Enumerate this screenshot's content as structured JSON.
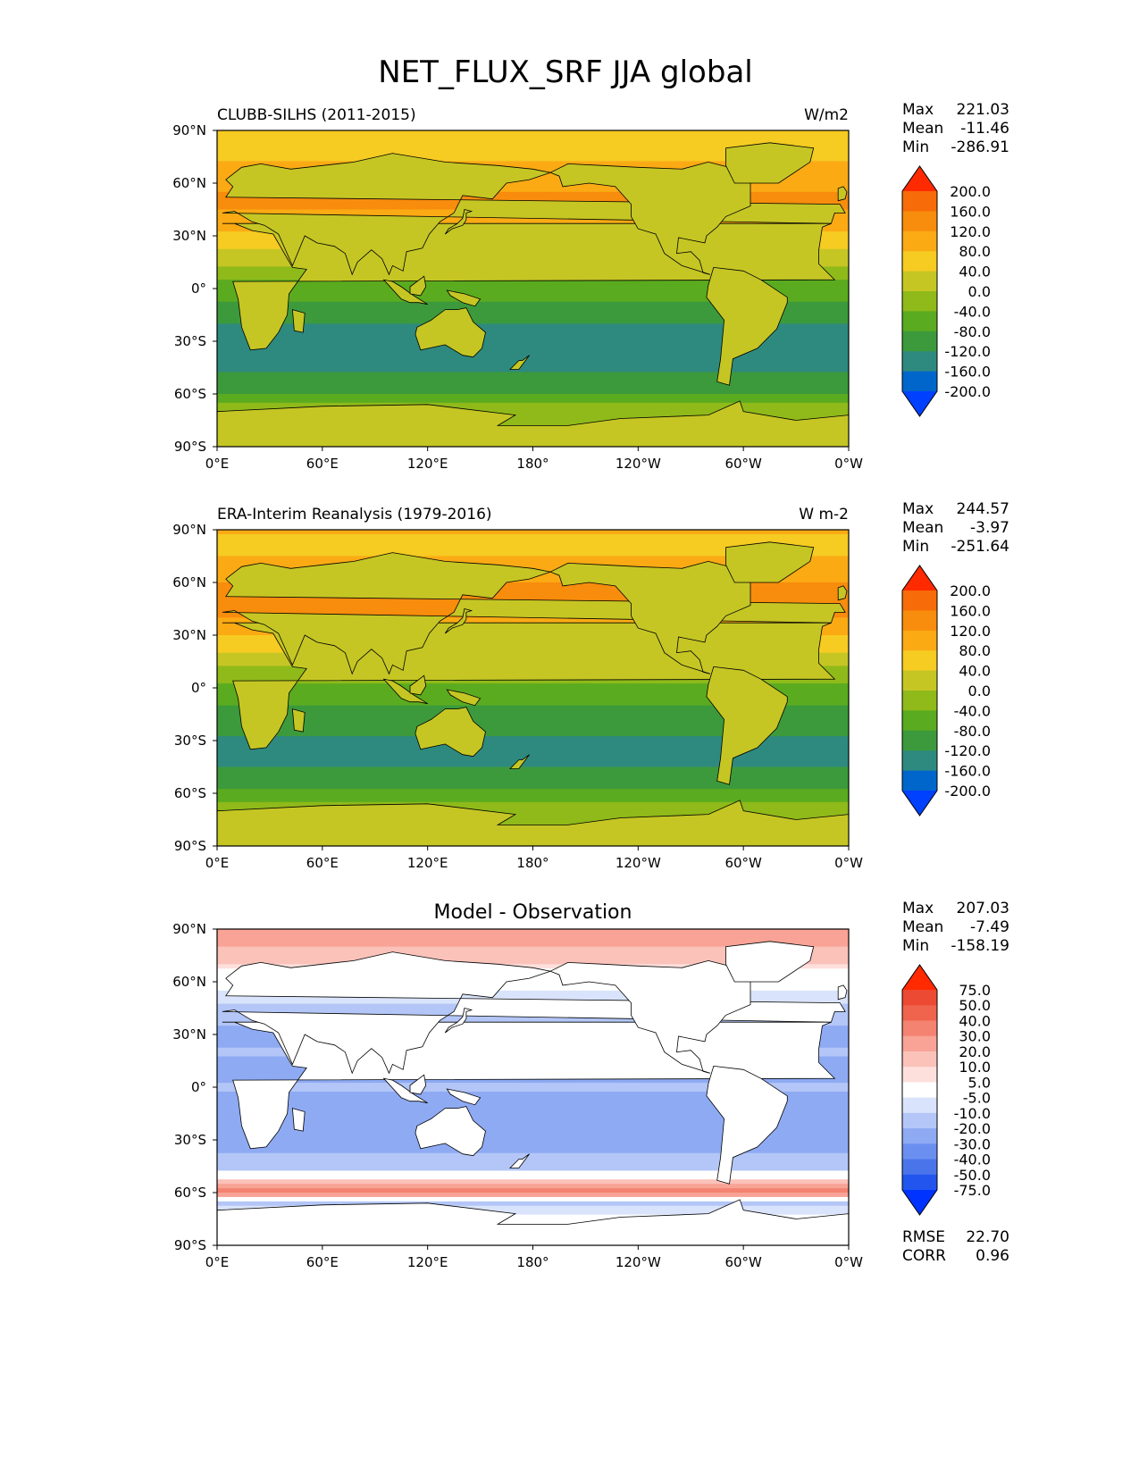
{
  "figure": {
    "title": "NET_FLUX_SRF JJA global"
  },
  "chart_data": [
    {
      "type": "heatmap",
      "title": "CLUBB-SILHS (2011-2015)",
      "units": "W/m2",
      "stats": {
        "lines": [
          {
            "label": "Max",
            "value": "221.03"
          },
          {
            "label": "Mean",
            "value": "-11.46"
          },
          {
            "label": "Min",
            "value": "-286.91"
          }
        ]
      },
      "xlim": [
        0,
        360
      ],
      "ylim": [
        -90,
        90
      ],
      "xticks": [
        "0°E",
        "60°E",
        "120°E",
        "180°",
        "120°W",
        "60°W",
        "0°W"
      ],
      "yticks": [
        "90°N",
        "60°N",
        "30°N",
        "0°",
        "30°S",
        "60°S",
        "90°S"
      ],
      "colorbar": {
        "levels": [
          -200,
          -160,
          -120,
          -80,
          -40,
          0,
          40,
          80,
          120,
          160,
          200
        ],
        "labels": [
          "-200.0",
          "-160.0",
          "-120.0",
          "-80.0",
          "-40.0",
          "0.0",
          "40.0",
          "80.0",
          "120.0",
          "160.0",
          "200.0"
        ],
        "colors": [
          "#0040ff",
          "#0066cc",
          "#2e8a7e",
          "#3c9a3c",
          "#5aab1f",
          "#8fba1a",
          "#c5c624",
          "#f6cb22",
          "#fbaa14",
          "#f88c0d",
          "#f76b08",
          "#ff2a00"
        ]
      }
    },
    {
      "type": "heatmap",
      "title": "ERA-Interim Reanalysis (1979-2016)",
      "units": "W m-2",
      "stats": {
        "lines": [
          {
            "label": "Max",
            "value": "244.57"
          },
          {
            "label": "Mean",
            "value": "-3.97"
          },
          {
            "label": "Min",
            "value": "-251.64"
          }
        ]
      },
      "xlim": [
        0,
        360
      ],
      "ylim": [
        -90,
        90
      ],
      "xticks": [
        "0°E",
        "60°E",
        "120°E",
        "180°",
        "120°W",
        "60°W",
        "0°W"
      ],
      "yticks": [
        "90°N",
        "60°N",
        "30°N",
        "0°",
        "30°S",
        "60°S",
        "90°S"
      ],
      "colorbar": {
        "levels": [
          -200,
          -160,
          -120,
          -80,
          -40,
          0,
          40,
          80,
          120,
          160,
          200
        ],
        "labels": [
          "-200.0",
          "-160.0",
          "-120.0",
          "-80.0",
          "-40.0",
          "0.0",
          "40.0",
          "80.0",
          "120.0",
          "160.0",
          "200.0"
        ],
        "colors": [
          "#0040ff",
          "#0066cc",
          "#2e8a7e",
          "#3c9a3c",
          "#5aab1f",
          "#8fba1a",
          "#c5c624",
          "#f6cb22",
          "#fbaa14",
          "#f88c0d",
          "#f76b08",
          "#ff2a00"
        ]
      }
    },
    {
      "type": "heatmap",
      "title": "Model - Observation",
      "units": "",
      "stats": {
        "lines": [
          {
            "label": "Max",
            "value": "207.03"
          },
          {
            "label": "Mean",
            "value": "-7.49"
          },
          {
            "label": "Min",
            "value": "-158.19"
          }
        ],
        "footer": [
          {
            "label": "RMSE",
            "value": "22.70"
          },
          {
            "label": "CORR",
            "value": "0.96"
          }
        ]
      },
      "xlim": [
        0,
        360
      ],
      "ylim": [
        -90,
        90
      ],
      "xticks": [
        "0°E",
        "60°E",
        "120°E",
        "180°",
        "120°W",
        "60°W",
        "0°W"
      ],
      "yticks": [
        "90°N",
        "60°N",
        "30°N",
        "0°",
        "30°S",
        "60°S",
        "90°S"
      ],
      "colorbar": {
        "levels": [
          -75,
          -50,
          -40,
          -30,
          -20,
          -10,
          -5,
          5,
          10,
          20,
          30,
          40,
          50,
          75
        ],
        "labels": [
          "-75.0",
          "-50.0",
          "-40.0",
          "-30.0",
          "-20.0",
          "-10.0",
          "-5.0",
          "5.0",
          "10.0",
          "20.0",
          "30.0",
          "40.0",
          "50.0",
          "75.0"
        ],
        "colors": [
          "#0033ff",
          "#2255ee",
          "#4a75ea",
          "#6a8ff0",
          "#8eaaf3",
          "#b3c6f7",
          "#d9e3fb",
          "#ffffff",
          "#fde0dc",
          "#fbc2ba",
          "#f8a396",
          "#f48371",
          "#f0634d",
          "#ec4a32",
          "#ff2a00"
        ]
      }
    }
  ]
}
